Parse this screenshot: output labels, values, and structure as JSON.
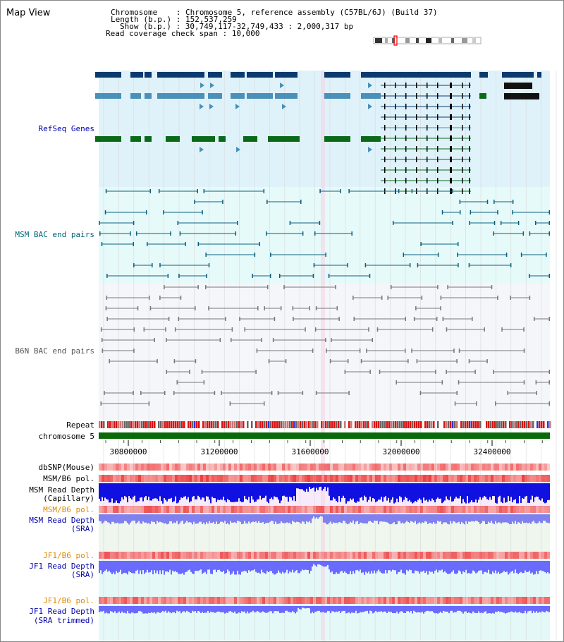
{
  "title": "Map View",
  "info": {
    "chromosome": "Chromosome    : Chromosome 5, reference assembly (C57BL/6J) (Build 37)",
    "length": "Length (b.p.) : 152,537,259",
    "show": "Show (b.p.) : 30,749,117-32,749,433 : 2,000,317 bp",
    "span": "Read coverage check span : 10,000"
  },
  "tracks": {
    "refseq": "RefSeq Genes",
    "msm_bac": "MSM BAC end pairs",
    "b6n_bac": "B6N BAC end pairs",
    "repeat": "Repeat",
    "chrom": "chromosome 5",
    "dbsnp": "dbSNP(Mouse)",
    "msm_pol": "MSM/B6 pol.",
    "msm_depth_cap_1": "MSM Read Depth",
    "msm_depth_cap_2": "(Capillary)",
    "msm_pol_sra": "MSM/B6 pol.",
    "msm_depth_sra_1": "MSM Read Depth",
    "msm_depth_sra_2": "(SRA)",
    "jf1_pol": "JF1/B6 pol.",
    "jf1_depth_1": "JF1 Read Depth",
    "jf1_depth_2": "(SRA)",
    "jf1_pol_2": "JF1/B6 pol.",
    "jf1_trim_1": "JF1 Read Depth",
    "jf1_trim_2": "(SRA trimmed)"
  },
  "axis_ticks": [
    "30800000",
    "31200000",
    "31600000",
    "32000000",
    "32400000"
  ],
  "colors": {
    "refseq_bg": "#dff2fa",
    "msm_bg": "#e6fafa",
    "b6n_bg": "#f4f6f9",
    "gene_dark": "#0a3a6e",
    "gene_mid": "#4a90b8",
    "gene_green": "#0a6a1a",
    "chrom_green": "#0a6a0a",
    "depth_blue": "#1010e0",
    "depth_light": "#6a6aff"
  }
}
